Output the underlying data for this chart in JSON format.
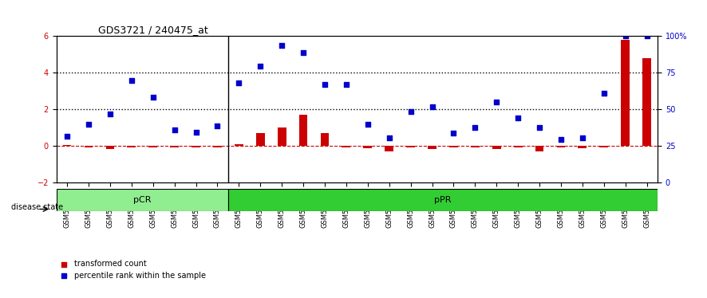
{
  "title": "GDS3721 / 240475_at",
  "samples": [
    "GSM559062",
    "GSM559063",
    "GSM559064",
    "GSM559065",
    "GSM559066",
    "GSM559067",
    "GSM559068",
    "GSM559069",
    "GSM559042",
    "GSM559043",
    "GSM559044",
    "GSM559045",
    "GSM559046",
    "GSM559047",
    "GSM559048",
    "GSM559049",
    "GSM559050",
    "GSM559051",
    "GSM559052",
    "GSM559053",
    "GSM559054",
    "GSM559055",
    "GSM559056",
    "GSM559057",
    "GSM559058",
    "GSM559059",
    "GSM559060",
    "GSM559061"
  ],
  "transformed_count": [
    0.05,
    -0.05,
    -0.15,
    -0.05,
    -0.05,
    -0.05,
    -0.05,
    -0.05,
    0.1,
    0.7,
    1.0,
    1.7,
    0.7,
    -0.05,
    -0.1,
    -0.3,
    -0.05,
    -0.15,
    -0.05,
    -0.05,
    -0.15,
    -0.05,
    -0.3,
    -0.05,
    -0.1,
    -0.05,
    5.8,
    4.8
  ],
  "percentile_rank": [
    0.55,
    1.2,
    1.75,
    3.6,
    2.65,
    0.9,
    0.75,
    1.1,
    3.45,
    4.35,
    5.5,
    5.1,
    3.35,
    3.35,
    1.2,
    0.45,
    1.9,
    2.15,
    0.7,
    1.0,
    2.4,
    1.55,
    1.0,
    0.35,
    0.45,
    2.9,
    6.0,
    6.0
  ],
  "pCR_count": 8,
  "pPR_count": 20,
  "ylim_left": [
    -2,
    6
  ],
  "yticks_left": [
    -2,
    0,
    2,
    4,
    6
  ],
  "ylim_right": [
    0,
    100
  ],
  "yticks_right": [
    0,
    25,
    50,
    75,
    100
  ],
  "bar_color": "#cc0000",
  "dot_color": "#0000cc",
  "pcr_color": "#90ee90",
  "ppr_color": "#32cd32",
  "bg_color": "#ffffff",
  "dashed_line_color": "#cc0000",
  "dotted_line_color": "#000000"
}
